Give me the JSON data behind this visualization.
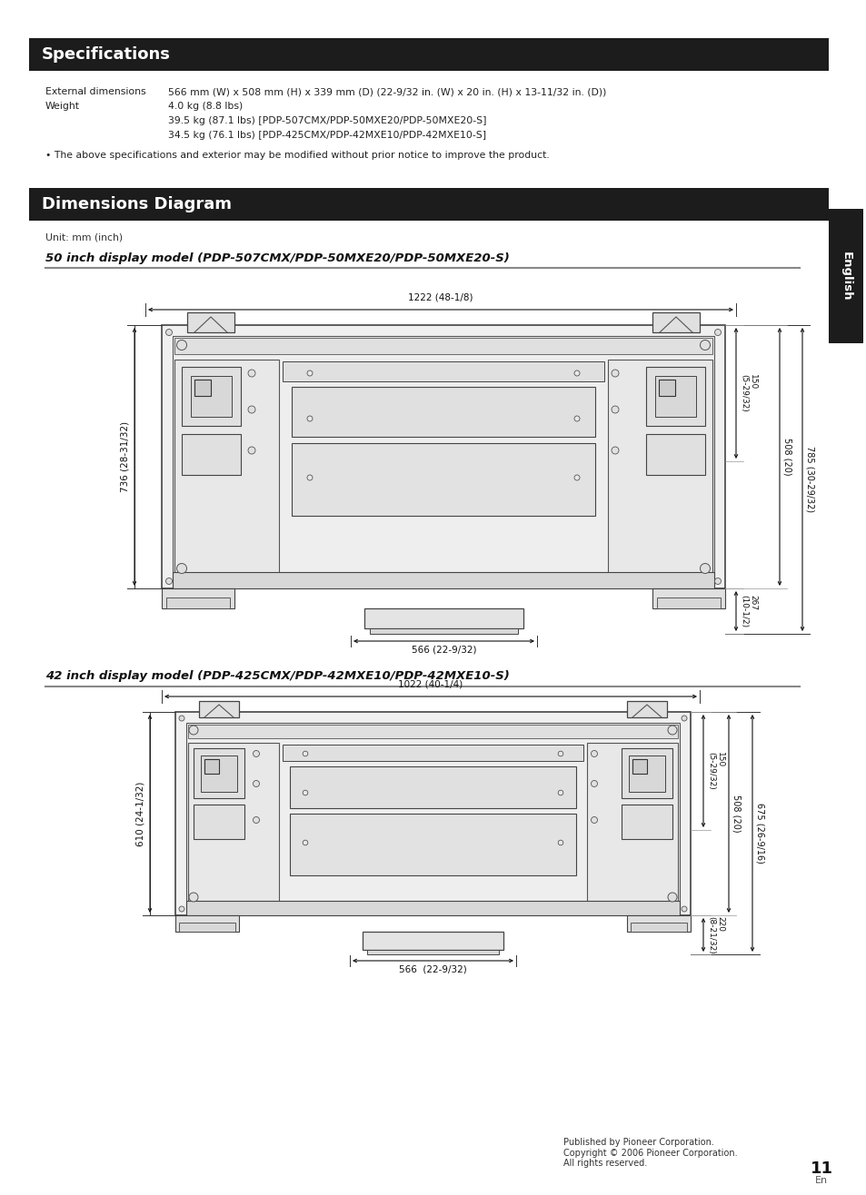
{
  "page_bg": "#ffffff",
  "specs_header": "Specifications",
  "specs_content": [
    [
      "External dimensions",
      "566 mm (W) x 508 mm (H) x 339 mm (D) (22-9/32 in. (W) x 20 in. (H) x 13-11/32 in. (D))"
    ],
    [
      "Weight",
      "4.0 kg (8.8 lbs)"
    ],
    [
      "",
      "39.5 kg (87.1 lbs) [PDP-507CMX/PDP-50MXE20/PDP-50MXE20-S]"
    ],
    [
      "",
      "34.5 kg (76.1 lbs) [PDP-425CMX/PDP-42MXE10/PDP-42MXE10-S]"
    ]
  ],
  "specs_note": "• The above specifications and exterior may be modified without prior notice to improve the product.",
  "dim_header": "Dimensions Diagram",
  "unit_text": "Unit: mm (inch)",
  "model50_title": "50 inch display model (PDP-507CMX/PDP-50MXE20/PDP-50MXE20-S)",
  "model42_title": "42 inch display model (PDP-425CMX/PDP-42MXE10/PDP-42MXE10-S)",
  "footer_text": "Published by Pioneer Corporation.\nCopyright © 2006 Pioneer Corporation.\nAll rights reserved.",
  "page_number": "11",
  "page_en": "En"
}
